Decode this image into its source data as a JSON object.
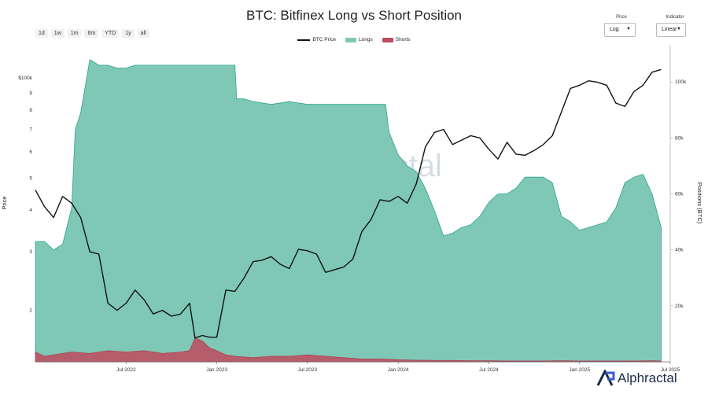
{
  "chart_data": {
    "type": "area",
    "title": "BTC: Bitfinex Long vs Short Position",
    "range_buttons": [
      "1d",
      "1w",
      "1m",
      "6m",
      "YTD",
      "1y",
      "all"
    ],
    "controls": {
      "price_label": "Price",
      "price_value": "Log",
      "indicator_label": "Indicator",
      "indicator_value": "Linear"
    },
    "legend": [
      "BTC Price",
      "Longs",
      "Shorts"
    ],
    "y_left_label": "Price",
    "y_right_label": "Positions (BTC)",
    "y_left_ticks": [
      "$100k",
      "9",
      "8",
      "7",
      "6",
      "5",
      "4",
      "3",
      "2"
    ],
    "y_right_ticks": [
      "100k",
      "80k",
      "60k",
      "40k",
      "20k"
    ],
    "x_ticks": [
      "Jul 2022",
      "Jan 2023",
      "Jul 2023",
      "Jan 2024",
      "Jul 2024",
      "Jan 2025",
      "Jul 2025"
    ],
    "y_left_log": true,
    "y_left_range": [
      14000,
      125000
    ],
    "y_right_range": [
      0,
      113000
    ],
    "x_range": [
      2022.0,
      2025.5
    ],
    "colors": {
      "price": "#111111",
      "longs": "#7fc8b6",
      "longs_line": "#2ea48a",
      "shorts": "#c04a5e"
    },
    "series": [
      {
        "name": "BTC Price",
        "x": [
          2022.0,
          2022.05,
          2022.1,
          2022.15,
          2022.2,
          2022.25,
          2022.3,
          2022.35,
          2022.4,
          2022.45,
          2022.5,
          2022.55,
          2022.6,
          2022.65,
          2022.7,
          2022.75,
          2022.8,
          2022.85,
          2022.88,
          2022.92,
          2022.96,
          2023.0,
          2023.05,
          2023.1,
          2023.15,
          2023.2,
          2023.25,
          2023.3,
          2023.35,
          2023.4,
          2023.45,
          2023.5,
          2023.55,
          2023.6,
          2023.65,
          2023.7,
          2023.75,
          2023.8,
          2023.85,
          2023.9,
          2023.95,
          2024.0,
          2024.05,
          2024.1,
          2024.15,
          2024.2,
          2024.25,
          2024.3,
          2024.35,
          2024.4,
          2024.45,
          2024.5,
          2024.55,
          2024.6,
          2024.65,
          2024.7,
          2024.75,
          2024.8,
          2024.85,
          2024.9,
          2024.95,
          2025.0,
          2025.05,
          2025.1,
          2025.15,
          2025.2,
          2025.25,
          2025.3,
          2025.35,
          2025.4,
          2025.45
        ],
        "values": [
          46000,
          41000,
          38000,
          44000,
          42000,
          38000,
          30000,
          29500,
          21000,
          20000,
          21000,
          23000,
          21500,
          19500,
          20000,
          19200,
          19500,
          21000,
          16500,
          16800,
          16600,
          16600,
          23000,
          22800,
          25000,
          28000,
          28300,
          29000,
          27500,
          26700,
          30500,
          30200,
          29500,
          26000,
          26500,
          27000,
          28500,
          34500,
          37500,
          43000,
          42500,
          44000,
          42000,
          48000,
          62000,
          68500,
          70000,
          63000,
          65000,
          67000,
          66000,
          61000,
          57000,
          64000,
          59000,
          58500,
          60500,
          63000,
          67000,
          79000,
          93000,
          95000,
          98000,
          97000,
          95000,
          84000,
          82000,
          91000,
          95000,
          104000,
          106000
        ]
      },
      {
        "name": "Longs",
        "x": [
          2022.0,
          2022.05,
          2022.1,
          2022.15,
          2022.2,
          2022.22,
          2022.25,
          2022.3,
          2022.35,
          2022.4,
          2022.45,
          2022.5,
          2022.55,
          2022.6,
          2022.65,
          2022.7,
          2022.75,
          2022.8,
          2022.85,
          2022.9,
          2022.95,
          2023.0,
          2023.05,
          2023.1,
          2023.11,
          2023.15,
          2023.2,
          2023.3,
          2023.4,
          2023.5,
          2023.6,
          2023.7,
          2023.75,
          2023.8,
          2023.85,
          2023.9,
          2023.93,
          2023.95,
          2024.0,
          2024.05,
          2024.1,
          2024.15,
          2024.2,
          2024.25,
          2024.3,
          2024.35,
          2024.4,
          2024.45,
          2024.5,
          2024.55,
          2024.6,
          2024.65,
          2024.7,
          2024.75,
          2024.8,
          2024.85,
          2024.9,
          2024.95,
          2025.0,
          2025.05,
          2025.1,
          2025.15,
          2025.2,
          2025.25,
          2025.3,
          2025.35,
          2025.4,
          2025.45
        ],
        "values": [
          43000,
          43000,
          40000,
          42000,
          55000,
          83000,
          89000,
          108000,
          106000,
          106000,
          105000,
          105000,
          106000,
          106000,
          106000,
          106000,
          106000,
          106000,
          106000,
          106000,
          106000,
          106000,
          106000,
          106000,
          94000,
          94000,
          93000,
          92000,
          93000,
          92000,
          92000,
          92000,
          92000,
          92000,
          92000,
          92000,
          92000,
          82000,
          74000,
          70000,
          68000,
          62000,
          54000,
          45000,
          46000,
          48000,
          49000,
          52000,
          57000,
          60000,
          60000,
          62000,
          66000,
          66000,
          66000,
          64000,
          52000,
          50000,
          47000,
          48000,
          49000,
          50000,
          55000,
          64000,
          66000,
          67000,
          60000,
          48000
        ]
      },
      {
        "name": "Shorts",
        "x": [
          2022.0,
          2022.05,
          2022.1,
          2022.15,
          2022.2,
          2022.3,
          2022.4,
          2022.5,
          2022.6,
          2022.7,
          2022.8,
          2022.85,
          2022.88,
          2022.92,
          2022.96,
          2023.0,
          2023.05,
          2023.1,
          2023.2,
          2023.3,
          2023.4,
          2023.5,
          2023.6,
          2023.7,
          2023.8,
          2023.9,
          2024.0,
          2024.1,
          2024.2,
          2024.3,
          2024.4,
          2024.5,
          2024.6,
          2024.7,
          2024.8,
          2024.9,
          2025.0,
          2025.1,
          2025.2,
          2025.3,
          2025.4,
          2025.45
        ],
        "values": [
          3500,
          2000,
          2500,
          3000,
          3500,
          3000,
          4000,
          3500,
          4000,
          3000,
          3500,
          4000,
          8500,
          7500,
          5000,
          4000,
          2500,
          2000,
          1500,
          2000,
          2000,
          2500,
          2000,
          1500,
          1000,
          1000,
          800,
          600,
          500,
          500,
          400,
          400,
          300,
          300,
          300,
          400,
          300,
          300,
          300,
          300,
          400,
          300
        ]
      }
    ]
  }
}
